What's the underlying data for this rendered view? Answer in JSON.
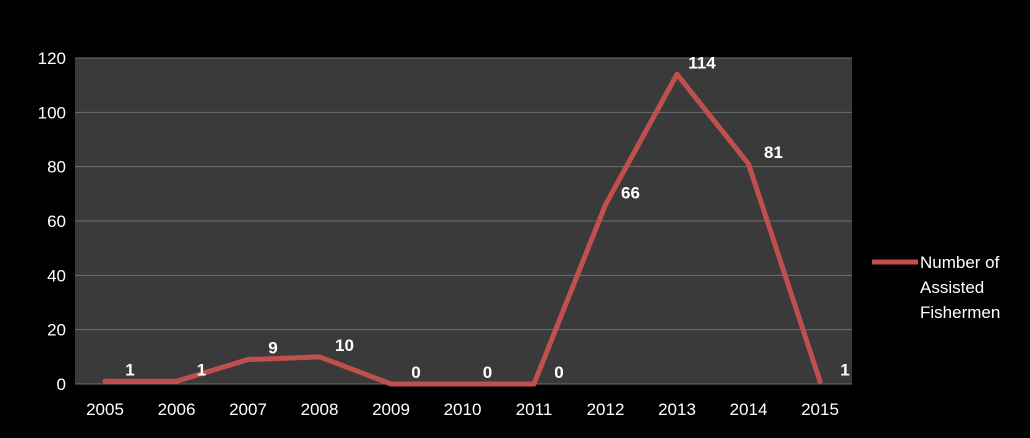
{
  "chart_data": {
    "type": "line",
    "categories": [
      "2005",
      "2006",
      "2007",
      "2008",
      "2009",
      "2010",
      "2011",
      "2012",
      "2013",
      "2014",
      "2015"
    ],
    "series": [
      {
        "name": "Number of Assisted Fishermen",
        "values": [
          1,
          1,
          9,
          10,
          0,
          0,
          0,
          66,
          114,
          81,
          1
        ]
      }
    ],
    "data_labels": [
      "1",
      "1",
      "9",
      "10",
      "0",
      "0",
      "0",
      "66",
      "114",
      "81",
      "1"
    ],
    "y_ticks": [
      "0",
      "20",
      "40",
      "60",
      "80",
      "100",
      "120"
    ],
    "ylim": [
      0,
      120
    ],
    "grid": true,
    "legend_position": "right",
    "legend_lines": [
      "Number of",
      "Assisted",
      "Fishermen"
    ],
    "colors": {
      "background": "#000000",
      "plot_area": "#3a3a3a",
      "gridline": "#6e6e6e",
      "line": "#c0504d",
      "text": "#ffffff"
    }
  }
}
